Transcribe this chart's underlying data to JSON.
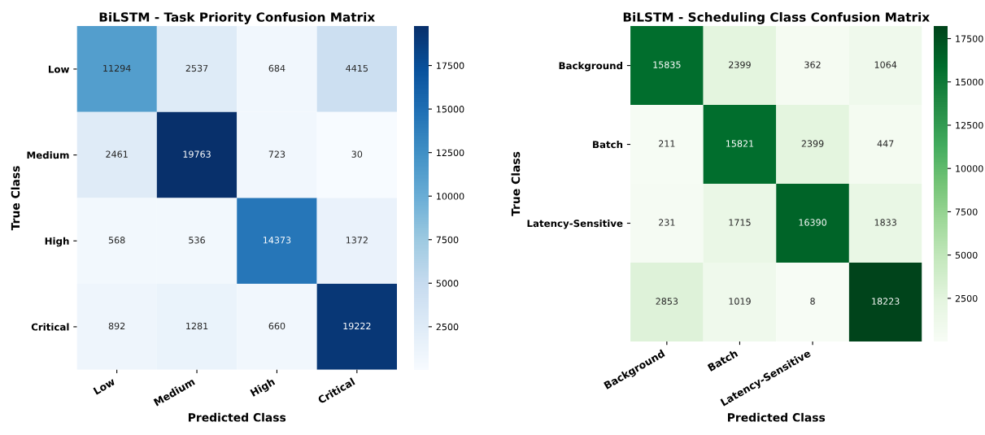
{
  "chart_data": [
    {
      "type": "heatmap",
      "title": "BiLSTM - Task Priority Confusion Matrix",
      "xlabel": "Predicted Class",
      "ylabel": "True Class",
      "categories": [
        "Low",
        "Medium",
        "High",
        "Critical"
      ],
      "y_categories": [
        "Low",
        "Medium",
        "High",
        "Critical"
      ],
      "cells": [
        [
          11294,
          2537,
          684,
          4415
        ],
        [
          2461,
          19763,
          723,
          30
        ],
        [
          568,
          536,
          14373,
          1372
        ],
        [
          892,
          1281,
          660,
          19222
        ]
      ],
      "clim": [
        30,
        19763
      ],
      "cticks": [
        2500,
        5000,
        7500,
        10000,
        12500,
        15000,
        17500
      ],
      "colors": [
        "#f7fbff",
        "#deebf7",
        "#c6dbef",
        "#9ecae1",
        "#6baed6",
        "#4292c6",
        "#2171b5",
        "#08519c",
        "#08306b"
      ],
      "data_labels": true
    },
    {
      "type": "heatmap",
      "title": "BiLSTM - Scheduling Class Confusion Matrix",
      "xlabel": "Predicted Class",
      "ylabel": "True Class",
      "categories": [
        "Background",
        "Batch",
        "Latency-Sensitive",
        null
      ],
      "y_categories": [
        "Background",
        "Batch",
        "Latency-Sensitive",
        null
      ],
      "cells": [
        [
          15835,
          2399,
          362,
          1064
        ],
        [
          211,
          15821,
          2399,
          447
        ],
        [
          231,
          1715,
          16390,
          1833
        ],
        [
          2853,
          1019,
          8,
          18223
        ]
      ],
      "clim": [
        8,
        18223
      ],
      "cticks": [
        2500,
        5000,
        7500,
        10000,
        12500,
        15000,
        17500
      ],
      "colors": [
        "#f7fcf5",
        "#e5f5e0",
        "#c7e9c0",
        "#a1d99b",
        "#74c476",
        "#41ab5d",
        "#238b45",
        "#006d2c",
        "#00441b"
      ],
      "data_labels": true
    }
  ]
}
